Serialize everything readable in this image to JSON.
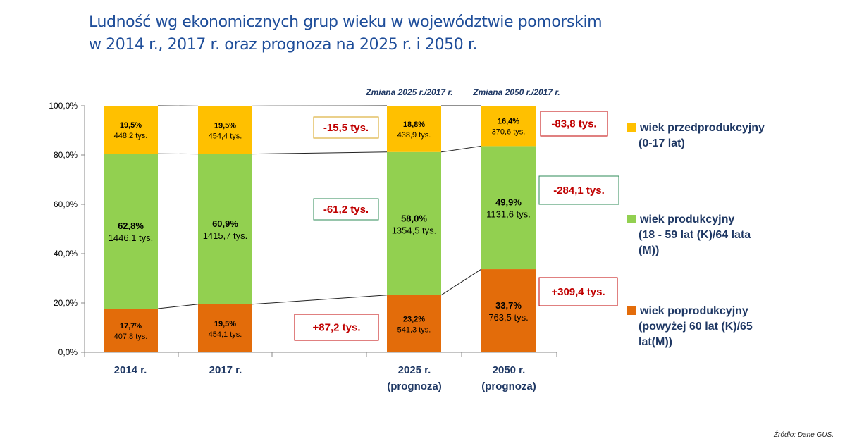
{
  "title": {
    "line1": "Ludność wg ekonomicznych grup wieku w województwie pomorskim",
    "line2": "w 2014 r., 2017 r. oraz prognoza na 2025 r. i 2050 r."
  },
  "source": "Źródło: Dane GUS.",
  "chart_data": {
    "type": "bar",
    "stacked": true,
    "percent": true,
    "ylim": [
      0,
      100
    ],
    "yticks": [
      "0,0%",
      "20,0%",
      "40,0%",
      "60,0%",
      "80,0%",
      "100,0%"
    ],
    "categories": [
      {
        "line1": "2014 r.",
        "line2": ""
      },
      {
        "line1": "2017 r.",
        "line2": ""
      },
      {
        "line1": "2025 r.",
        "line2": "(prognoza)"
      },
      {
        "line1": "2050 r.",
        "line2": "(prognoza)"
      }
    ],
    "series": [
      {
        "name": "wiek poprodukcyjny (powyżej 60 lat (K)/65 lat(M))",
        "legend_lines": [
          "wiek poprodukcyjny",
          "(powyżej 60 lat (K)/65",
          "lat(M))"
        ],
        "color": "#e36c0a",
        "values": [
          17.7,
          19.5,
          23.2,
          33.7
        ],
        "labels_pct": [
          "17,7%",
          "19,5%",
          "23,2%",
          "33,7%"
        ],
        "labels_abs": [
          "407,8 tys.",
          "454,1 tys.",
          "541,3 tys.",
          "763,5 tys."
        ]
      },
      {
        "name": "wiek produkcyjny (18 - 59 lat (K)/64 lata (M))",
        "legend_lines": [
          "wiek produkcyjny",
          "(18 - 59 lat (K)/64 lata",
          "(M))"
        ],
        "color": "#92d050",
        "values": [
          62.8,
          60.9,
          58.0,
          49.9
        ],
        "labels_pct": [
          "62,8%",
          "60,9%",
          "58,0%",
          "49,9%"
        ],
        "labels_abs": [
          "1446,1 tys.",
          "1415,7 tys.",
          "1354,5 tys.",
          "1131,6 tys."
        ]
      },
      {
        "name": "wiek przedprodukcyjny (0-17 lat)",
        "legend_lines": [
          "wiek przedprodukcyjny",
          "(0-17 lat)"
        ],
        "color": "#ffc000",
        "values": [
          19.5,
          19.5,
          18.8,
          16.4
        ],
        "labels_pct": [
          "19,5%",
          "19,5%",
          "18,8%",
          "16,4%"
        ],
        "labels_abs": [
          "448,2 tys.",
          "454,4 tys.",
          "438,9 tys.",
          "370,6 tys."
        ]
      }
    ],
    "change_headers": [
      "Zmiana 2025 r./2017 r.",
      "Zmiana 2050 r./2017 r."
    ],
    "changes_2025_vs_2017": [
      {
        "group": "wiek przedprodukcyjny",
        "text": "-15,5 tys.",
        "border": "#d4a017"
      },
      {
        "group": "wiek produkcyjny",
        "text": "-61,2 tys.",
        "border": "#2e8b57"
      },
      {
        "group": "wiek poprodukcyjny",
        "text": "+87,2 tys.",
        "border": "#c00000"
      }
    ],
    "changes_2050_vs_2017": [
      {
        "group": "wiek przedprodukcyjny",
        "text": "-83,8 tys.",
        "border": "#c00000"
      },
      {
        "group": "wiek produkcyjny",
        "text": "-284,1 tys.",
        "border": "#2e8b57"
      },
      {
        "group": "wiek poprodukcyjny",
        "text": "+309,4 tys.",
        "border": "#c00000"
      }
    ],
    "change_text_color": "#c00000"
  }
}
